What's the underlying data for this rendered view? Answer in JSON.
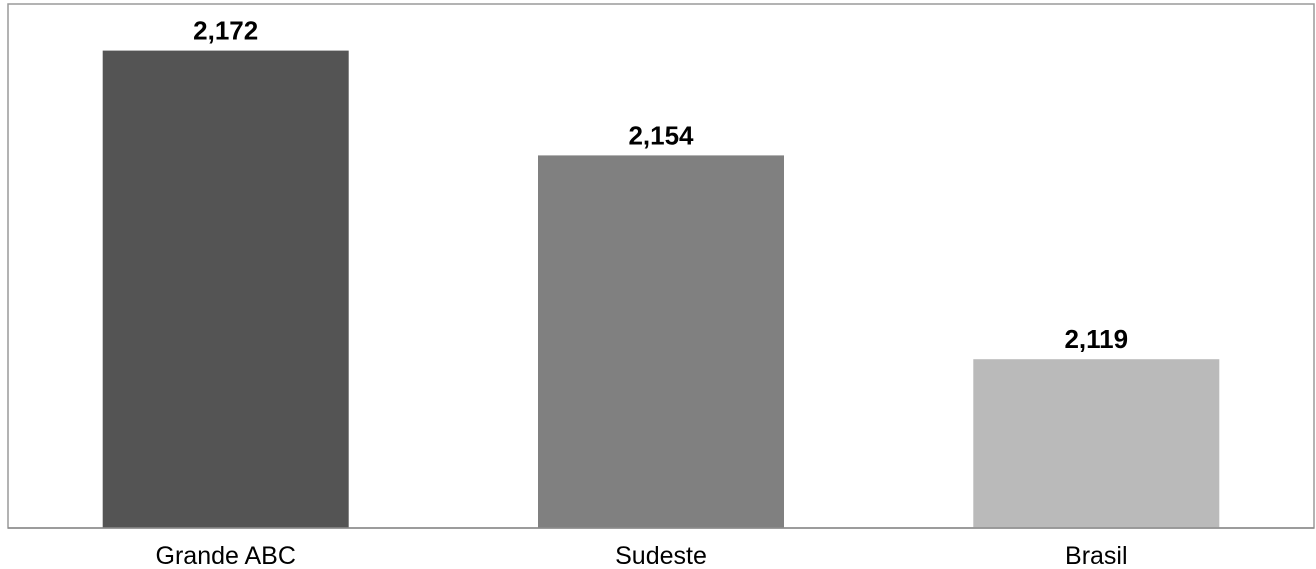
{
  "chart_data": {
    "type": "bar",
    "categories": [
      "Grande ABC",
      "Sudeste",
      "Brasil"
    ],
    "values": [
      2.172,
      2.154,
      2.119
    ],
    "value_labels": [
      "2,172",
      "2,154",
      "2,119"
    ],
    "colors": [
      "#545454",
      "#808080",
      "#bababa"
    ],
    "ylim": [
      2.09,
      2.18
    ],
    "grid": false,
    "legend": "none",
    "title": "",
    "xlabel": "",
    "ylabel": ""
  }
}
